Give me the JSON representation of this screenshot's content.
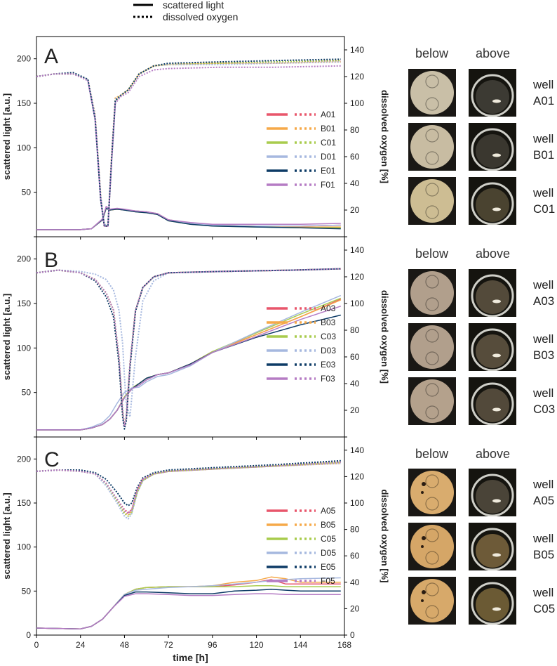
{
  "legend": {
    "solid_label": "scattered light",
    "dotted_label": "dissolved oxygen"
  },
  "axes": {
    "xlabel": "time [h]",
    "ylabel_left": "scattered light [a.u.]",
    "ylabel_right": "dissolved oxygen [%]",
    "x_ticks": [
      "0",
      "24",
      "48",
      "72",
      "96",
      "120",
      "144",
      "168"
    ],
    "y_left_ticks": [
      "0",
      "50",
      "100",
      "150",
      "200"
    ],
    "y_right_ticks": [
      "0",
      "20",
      "40",
      "60",
      "80",
      "100",
      "120",
      "140"
    ]
  },
  "series_colors": {
    "well1": "#e8566b",
    "well2": "#f6a949",
    "well3": "#a8cc4d",
    "well4": "#a6b8df",
    "well5": "#0d3b66",
    "well6": "#b57cc4"
  },
  "photo_headers": {
    "below": "below",
    "above": "above"
  },
  "well_word": "well",
  "chart_data": [
    {
      "type": "line",
      "panel": "A",
      "xlim": [
        0,
        168
      ],
      "ylim_left": [
        0,
        225
      ],
      "ylim_right": [
        0,
        150
      ],
      "xlabel": "time [h]",
      "ylabel_left": "scattered light [a.u.]",
      "ylabel_right": "dissolved oxygen [%]",
      "legend_position": "center-right",
      "legend": [
        "A01",
        "B01",
        "C01",
        "D01",
        "E01",
        "F01"
      ],
      "scattered_light": {
        "x": [
          0,
          24,
          30,
          36,
          38,
          40,
          44,
          48,
          54,
          60,
          66,
          72,
          84,
          96,
          120,
          144,
          166
        ],
        "series": [
          {
            "name": "A01",
            "values": [
              8,
              8,
              9,
              20,
              33,
              30,
              31,
              30,
              29,
              28,
              26,
              19,
              15,
              13,
              12,
              12,
              13
            ]
          },
          {
            "name": "B01",
            "values": [
              8,
              8,
              9,
              19,
              32,
              30,
              31,
              30,
              29,
              28,
              26,
              19,
              15,
              13,
              12,
              11,
              11
            ]
          },
          {
            "name": "C01",
            "values": [
              8,
              8,
              9,
              19,
              32,
              30,
              31,
              30,
              28,
              27,
              25,
              18,
              14,
              12,
              11,
              10,
              10
            ]
          },
          {
            "name": "D01",
            "values": [
              8,
              8,
              9,
              20,
              33,
              31,
              31,
              30,
              29,
              28,
              26,
              19,
              15,
              13,
              12,
              12,
              13
            ]
          },
          {
            "name": "E01",
            "values": [
              8,
              8,
              9,
              19,
              32,
              30,
              31,
              30,
              28,
              27,
              25,
              18,
              14,
              12,
              11,
              10,
              9
            ]
          },
          {
            "name": "F01",
            "values": [
              8,
              8,
              9,
              20,
              34,
              31,
              32,
              31,
              29,
              28,
              26,
              19,
              16,
              14,
              14,
              14,
              15
            ]
          }
        ]
      },
      "dissolved_oxygen": {
        "x": [
          0,
          10,
          20,
          28,
          32,
          35,
          37,
          39,
          41,
          43,
          46,
          50,
          56,
          64,
          72,
          100,
          130,
          166
        ],
        "series": [
          {
            "name": "A01",
            "values": [
              120,
              122,
              122,
              118,
              90,
              30,
              8,
              8,
              60,
              103,
              106,
              110,
              122,
              128,
              129,
              130,
              130,
              132
            ]
          },
          {
            "name": "B01",
            "values": [
              120,
              122,
              122,
              118,
              92,
              32,
              8,
              8,
              62,
              104,
              106,
              110,
              122,
              128,
              129,
              130,
              130,
              131
            ]
          },
          {
            "name": "C01",
            "values": [
              120,
              122,
              122,
              118,
              90,
              30,
              9,
              9,
              58,
              102,
              106,
              110,
              122,
              128,
              129,
              130,
              131,
              132
            ]
          },
          {
            "name": "D01",
            "values": [
              120,
              122,
              122,
              118,
              91,
              31,
              9,
              9,
              60,
              103,
              106,
              110,
              122,
              128,
              129,
              129,
              130,
              131
            ]
          },
          {
            "name": "E01",
            "values": [
              120,
              122,
              123,
              118,
              88,
              28,
              8,
              8,
              58,
              102,
              106,
              110,
              122,
              128,
              130,
              131,
              132,
              133
            ]
          },
          {
            "name": "F01",
            "values": [
              120,
              122,
              122,
              117,
              88,
              28,
              8,
              8,
              56,
              100,
              105,
              108,
              120,
              125,
              126,
              127,
              127,
              128
            ]
          }
        ]
      }
    },
    {
      "type": "line",
      "panel": "B",
      "xlim": [
        0,
        168
      ],
      "ylim_left": [
        0,
        225
      ],
      "ylim_right": [
        0,
        150
      ],
      "xlabel": "time [h]",
      "ylabel_left": "scattered light [a.u.]",
      "ylabel_right": "dissolved oxygen [%]",
      "legend_position": "bottom-right",
      "legend": [
        "A03",
        "B03",
        "C03",
        "D03",
        "E03",
        "F03"
      ],
      "scattered_light": {
        "x": [
          0,
          24,
          30,
          36,
          40,
          44,
          48,
          52,
          56,
          60,
          66,
          72,
          84,
          96,
          120,
          144,
          166
        ],
        "series": [
          {
            "name": "A03",
            "values": [
              8,
              8,
              10,
              14,
              20,
              30,
              45,
              55,
              60,
              66,
              70,
              72,
              82,
              96,
              115,
              135,
              155
            ]
          },
          {
            "name": "B03",
            "values": [
              8,
              8,
              10,
              14,
              20,
              30,
              45,
              55,
              60,
              66,
              70,
              72,
              82,
              95,
              115,
              135,
              154
            ]
          },
          {
            "name": "C03",
            "values": [
              8,
              8,
              10,
              14,
              20,
              30,
              45,
              55,
              60,
              66,
              70,
              72,
              82,
              96,
              117,
              138,
              156
            ]
          },
          {
            "name": "D03",
            "values": [
              8,
              8,
              11,
              16,
              24,
              38,
              50,
              55,
              56,
              62,
              68,
              70,
              80,
              95,
              118,
              140,
              159
            ]
          },
          {
            "name": "E03",
            "values": [
              8,
              8,
              10,
              14,
              20,
              30,
              44,
              54,
              60,
              66,
              70,
              72,
              82,
              95,
              112,
              126,
              137
            ]
          },
          {
            "name": "F03",
            "values": [
              8,
              8,
              10,
              14,
              20,
              30,
              44,
              54,
              58,
              64,
              70,
              72,
              81,
              95,
              113,
              132,
              147
            ]
          }
        ]
      },
      "dissolved_oxygen": {
        "x": [
          0,
          12,
          24,
          32,
          38,
          42,
          45,
          47,
          48,
          49,
          51,
          54,
          58,
          64,
          72,
          100,
          140,
          166
        ],
        "series": [
          {
            "name": "A03",
            "values": [
              123,
              125,
              123,
              118,
              108,
              95,
              60,
              20,
              8,
              15,
              55,
              95,
              112,
              120,
              123,
              124,
              125,
              126
            ]
          },
          {
            "name": "B03",
            "values": [
              123,
              125,
              123,
              118,
              108,
              95,
              60,
              20,
              8,
              15,
              55,
              95,
              112,
              120,
              123,
              124,
              125,
              126
            ]
          },
          {
            "name": "C03",
            "values": [
              123,
              125,
              123,
              118,
              108,
              95,
              60,
              20,
              8,
              15,
              55,
              95,
              112,
              120,
              123,
              124,
              125,
              126
            ]
          },
          {
            "name": "D03",
            "values": [
              123,
              125,
              124,
              122,
              118,
              110,
              95,
              70,
              45,
              25,
              15,
              60,
              102,
              117,
              123,
              124,
              125,
              126
            ]
          },
          {
            "name": "E03",
            "values": [
              123,
              125,
              123,
              117,
              105,
              90,
              55,
              15,
              6,
              12,
              52,
              94,
              112,
              120,
              123,
              124,
              125,
              126
            ]
          },
          {
            "name": "F03",
            "values": [
              123,
              125,
              123,
              118,
              108,
              95,
              60,
              20,
              8,
              15,
              55,
              95,
              112,
              120,
              123,
              124,
              125,
              126
            ]
          }
        ]
      }
    },
    {
      "type": "line",
      "panel": "C",
      "xlim": [
        0,
        168
      ],
      "ylim_left": [
        0,
        225
      ],
      "ylim_right": [
        0,
        150
      ],
      "xlabel": "time [h]",
      "ylabel_left": "scattered light [a.u.]",
      "ylabel_right": "dissolved oxygen [%]",
      "legend_position": "center-right",
      "legend": [
        "A05",
        "B05",
        "C05",
        "D05",
        "E05",
        "F05"
      ],
      "scattered_light": {
        "x": [
          0,
          24,
          30,
          36,
          42,
          48,
          54,
          60,
          72,
          84,
          96,
          108,
          120,
          128,
          136,
          144,
          166
        ],
        "series": [
          {
            "name": "A05",
            "values": [
              8,
              7,
              10,
              18,
              32,
              46,
              52,
              54,
              55,
              55,
              55,
              57,
              60,
              63,
              58,
              58,
              58
            ]
          },
          {
            "name": "B05",
            "values": [
              8,
              7,
              10,
              18,
              32,
              46,
              52,
              54,
              55,
              55,
              56,
              60,
              62,
              66,
              64,
              60,
              60
            ]
          },
          {
            "name": "C05",
            "values": [
              8,
              7,
              10,
              18,
              32,
              46,
              52,
              54,
              55,
              55,
              55,
              55,
              56,
              56,
              55,
              55,
              55
            ]
          },
          {
            "name": "D05",
            "values": [
              8,
              7,
              10,
              18,
              32,
              46,
              51,
              52,
              54,
              55,
              56,
              58,
              60,
              62,
              63,
              64,
              65
            ]
          },
          {
            "name": "E05",
            "values": [
              8,
              7,
              10,
              18,
              32,
              45,
              49,
              49,
              48,
              47,
              47,
              50,
              51,
              52,
              51,
              50,
              50
            ]
          },
          {
            "name": "F05",
            "values": [
              8,
              7,
              10,
              18,
              32,
              44,
              47,
              47,
              46,
              45,
              45,
              46,
              47,
              47,
              46,
              46,
              46
            ]
          }
        ]
      },
      "dissolved_oxygen": {
        "x": [
          0,
          12,
          24,
          32,
          38,
          44,
          48,
          50,
          52,
          55,
          58,
          64,
          72,
          100,
          130,
          166
        ],
        "series": [
          {
            "name": "A05",
            "values": [
              124,
              125,
              124,
              122,
              115,
              103,
              95,
              93,
              95,
              110,
              118,
              122,
              124,
              126,
              128,
              131
            ]
          },
          {
            "name": "B05",
            "values": [
              124,
              125,
              124,
              122,
              115,
              102,
              93,
              91,
              94,
              109,
              117,
              122,
              124,
              126,
              128,
              130
            ]
          },
          {
            "name": "C05",
            "values": [
              124,
              125,
              124,
              122,
              114,
              101,
              92,
              90,
              93,
              108,
              117,
              122,
              124,
              126,
              128,
              131
            ]
          },
          {
            "name": "D05",
            "values": [
              124,
              125,
              124,
              122,
              113,
              100,
              90,
              88,
              92,
              108,
              117,
              122,
              124,
              126,
              128,
              130
            ]
          },
          {
            "name": "E05",
            "values": [
              124,
              125,
              125,
              123,
              118,
              108,
              100,
              98,
              100,
              112,
              119,
              123,
              125,
              127,
              129,
              132
            ]
          },
          {
            "name": "F05",
            "values": [
              124,
              125,
              124,
              122,
              115,
              103,
              94,
              92,
              95,
              110,
              118,
              122,
              124,
              126,
              128,
              131
            ]
          }
        ]
      }
    }
  ],
  "photos": [
    {
      "panel": "A",
      "wells": [
        {
          "id": "A01",
          "bottom": "#c9bfa7",
          "top": "#3c3a33"
        },
        {
          "id": "B01",
          "bottom": "#c8bca2",
          "top": "#3a372f"
        },
        {
          "id": "C01",
          "bottom": "#cdbd93",
          "top": "#4a4330"
        }
      ]
    },
    {
      "panel": "B",
      "wells": [
        {
          "id": "A03",
          "bottom": "#b19f8c",
          "top": "#534a3a"
        },
        {
          "id": "B03",
          "bottom": "#b19f8c",
          "top": "#564c3b"
        },
        {
          "id": "C03",
          "bottom": "#b4a18c",
          "top": "#52493a"
        }
      ]
    },
    {
      "panel": "C",
      "wells": [
        {
          "id": "A05",
          "bottom": "#d9ac6e",
          "top": "#4a4438"
        },
        {
          "id": "B05",
          "bottom": "#d5a667",
          "top": "#6d5a38"
        },
        {
          "id": "C05",
          "bottom": "#d7a96a",
          "top": "#6b5a34"
        }
      ]
    }
  ]
}
